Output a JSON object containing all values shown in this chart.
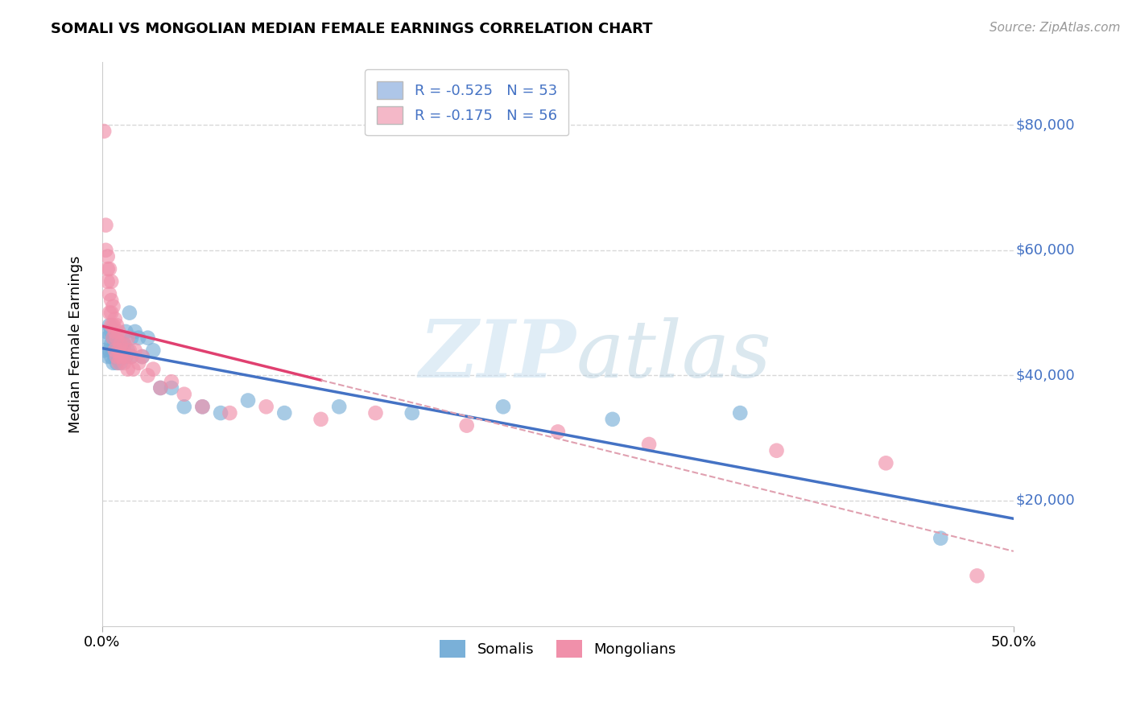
{
  "title": "SOMALI VS MONGOLIAN MEDIAN FEMALE EARNINGS CORRELATION CHART",
  "source": "Source: ZipAtlas.com",
  "ylabel": "Median Female Earnings",
  "legend_items": [
    {
      "label": "R = -0.525   N = 53",
      "color": "#aec6e8"
    },
    {
      "label": "R = -0.175   N = 56",
      "color": "#f4b8c8"
    }
  ],
  "bottom_legend": [
    "Somalis",
    "Mongolians"
  ],
  "somali_color": "#7ab0d8",
  "mongolian_color": "#f090aa",
  "somali_line_color": "#4472c4",
  "mongolian_line_color": "#e04070",
  "dashed_line_color": "#e0a0b0",
  "watermark_zip": "ZIP",
  "watermark_atlas": "atlas",
  "xlim": [
    0.0,
    0.5
  ],
  "ylim": [
    0,
    90000
  ],
  "ytick_values": [
    20000,
    40000,
    60000,
    80000
  ],
  "ytick_labels": [
    "$20,000",
    "$40,000",
    "$60,000",
    "$80,000"
  ],
  "grid_color": "#d8d8d8",
  "somali_x": [
    0.001,
    0.002,
    0.003,
    0.003,
    0.004,
    0.004,
    0.005,
    0.005,
    0.005,
    0.006,
    0.006,
    0.006,
    0.007,
    0.007,
    0.007,
    0.008,
    0.008,
    0.008,
    0.008,
    0.009,
    0.009,
    0.009,
    0.01,
    0.01,
    0.01,
    0.011,
    0.011,
    0.012,
    0.012,
    0.013,
    0.013,
    0.014,
    0.015,
    0.016,
    0.016,
    0.018,
    0.02,
    0.022,
    0.025,
    0.028,
    0.032,
    0.038,
    0.045,
    0.055,
    0.065,
    0.08,
    0.1,
    0.13,
    0.17,
    0.22,
    0.28,
    0.35,
    0.46
  ],
  "somali_y": [
    44000,
    47000,
    43000,
    46000,
    44000,
    48000,
    45000,
    43000,
    47000,
    44000,
    42000,
    46000,
    43000,
    45000,
    44000,
    43000,
    44000,
    46000,
    42000,
    43000,
    45000,
    44000,
    43000,
    45000,
    42000,
    44000,
    43000,
    44000,
    45000,
    43000,
    47000,
    44000,
    50000,
    46000,
    43000,
    47000,
    46000,
    43000,
    46000,
    44000,
    38000,
    38000,
    35000,
    35000,
    34000,
    36000,
    34000,
    35000,
    34000,
    35000,
    33000,
    34000,
    14000
  ],
  "mongolian_x": [
    0.001,
    0.002,
    0.002,
    0.003,
    0.003,
    0.003,
    0.004,
    0.004,
    0.004,
    0.005,
    0.005,
    0.005,
    0.005,
    0.006,
    0.006,
    0.006,
    0.007,
    0.007,
    0.007,
    0.008,
    0.008,
    0.008,
    0.009,
    0.009,
    0.009,
    0.01,
    0.01,
    0.011,
    0.011,
    0.012,
    0.012,
    0.013,
    0.014,
    0.014,
    0.015,
    0.016,
    0.017,
    0.018,
    0.02,
    0.022,
    0.025,
    0.028,
    0.032,
    0.038,
    0.045,
    0.055,
    0.07,
    0.09,
    0.12,
    0.15,
    0.2,
    0.25,
    0.3,
    0.37,
    0.43,
    0.48
  ],
  "mongolian_y": [
    79000,
    60000,
    64000,
    57000,
    55000,
    59000,
    53000,
    57000,
    50000,
    52000,
    48000,
    50000,
    55000,
    48000,
    51000,
    46000,
    47000,
    49000,
    44000,
    46000,
    43000,
    48000,
    44000,
    47000,
    42000,
    45000,
    43000,
    44000,
    43000,
    45000,
    42000,
    43000,
    41000,
    46000,
    44000,
    43000,
    41000,
    44000,
    42000,
    43000,
    40000,
    41000,
    38000,
    39000,
    37000,
    35000,
    34000,
    35000,
    33000,
    34000,
    32000,
    31000,
    29000,
    28000,
    26000,
    8000
  ]
}
